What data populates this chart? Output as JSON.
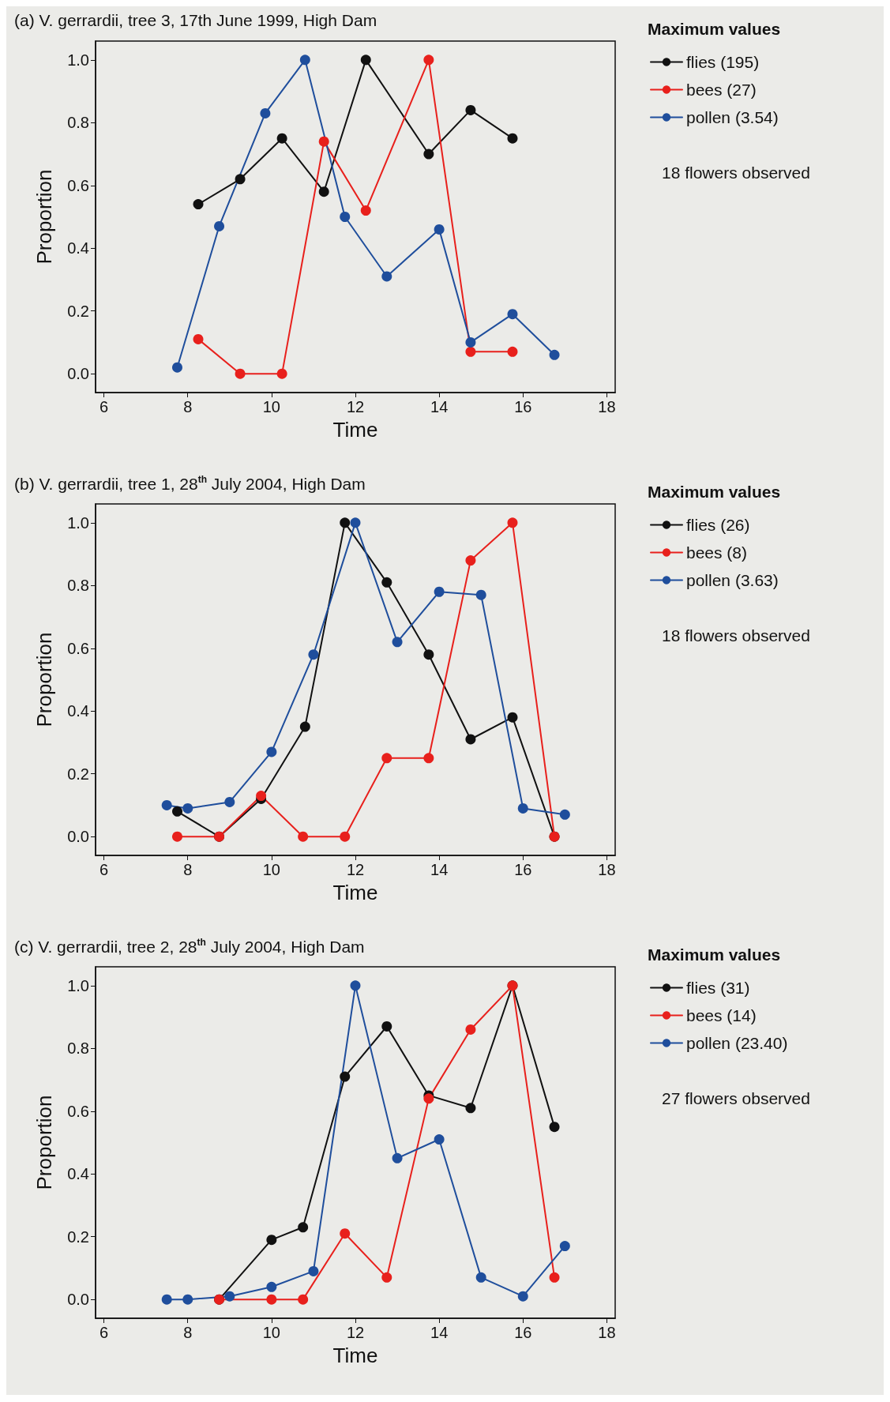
{
  "chart_data": [
    {
      "type": "line",
      "title": "(a) V. gerrardii, tree 3, 17th June 1999, High Dam",
      "xlabel": "Time",
      "ylabel": "Proportion",
      "legend_title": "Maximum values",
      "annotations": [
        "18 flowers observed"
      ],
      "legend": "right",
      "grid": false,
      "marker": "circle",
      "line_style": "solid",
      "xlim": [
        5.8,
        18.2
      ],
      "xticks": [
        6,
        8,
        10,
        12,
        14,
        16,
        18
      ],
      "ylim": [
        -0.06,
        1.06
      ],
      "yticks": [
        {
          "value": 0,
          "label": "0.0"
        },
        {
          "value": 0.2,
          "label": "0.2"
        },
        {
          "value": 0.4,
          "label": "0.4"
        },
        {
          "value": 0.6,
          "label": "0.6"
        },
        {
          "value": 0.8,
          "label": "0.8"
        },
        {
          "value": 1,
          "label": "1.0"
        }
      ],
      "series": [
        {
          "name": "flies (195)",
          "color": "#111111",
          "x": [
            8.25,
            9.25,
            10.25,
            11.25,
            12.25,
            13.75,
            14.75,
            15.75
          ],
          "values": [
            0.54,
            0.62,
            0.75,
            0.58,
            1.0,
            0.7,
            0.84,
            0.75
          ]
        },
        {
          "name": "bees (27)",
          "color": "#e8201c",
          "x": [
            8.25,
            9.25,
            10.25,
            11.25,
            12.25,
            13.75,
            14.75,
            15.75
          ],
          "values": [
            0.11,
            0,
            0,
            0.74,
            0.52,
            1.0,
            0.07,
            0.07
          ]
        },
        {
          "name": "pollen (3.54)",
          "color": "#1f4e9c",
          "x": [
            7.75,
            8.75,
            9.85,
            10.8,
            11.75,
            12.75,
            14,
            14.75,
            15.75,
            16.75
          ],
          "values": [
            0.02,
            0.47,
            0.83,
            1.0,
            0.5,
            0.31,
            0.46,
            0.1,
            0.19,
            0.06
          ]
        }
      ]
    },
    {
      "type": "line",
      "title": "(b) V. gerrardii, tree 1, 28$^{th}$ July 2004, High Dam",
      "xlabel": "Time",
      "ylabel": "Proportion",
      "legend_title": "Maximum values",
      "annotations": [
        "18 flowers observed"
      ],
      "legend": "right",
      "grid": false,
      "marker": "circle",
      "line_style": "solid",
      "xlim": [
        5.8,
        18.2
      ],
      "xticks": [
        6,
        8,
        10,
        12,
        14,
        16,
        18
      ],
      "ylim": [
        -0.06,
        1.06
      ],
      "yticks": [
        {
          "value": 0,
          "label": "0.0"
        },
        {
          "value": 0.2,
          "label": "0.2"
        },
        {
          "value": 0.4,
          "label": "0.4"
        },
        {
          "value": 0.6,
          "label": "0.6"
        },
        {
          "value": 0.8,
          "label": "0.8"
        },
        {
          "value": 1,
          "label": "1.0"
        }
      ],
      "series": [
        {
          "name": "flies (26)",
          "color": "#111111",
          "x": [
            7.75,
            8.75,
            9.75,
            10.8,
            11.75,
            12.75,
            13.75,
            14.75,
            15.75,
            16.75
          ],
          "values": [
            0.08,
            0,
            0.12,
            0.35,
            1.0,
            0.81,
            0.58,
            0.31,
            0.38,
            0
          ]
        },
        {
          "name": "bees (8)",
          "color": "#e8201c",
          "x": [
            7.75,
            8.75,
            9.75,
            10.75,
            11.75,
            12.75,
            13.75,
            14.75,
            15.75,
            16.75
          ],
          "values": [
            0,
            0,
            0.13,
            0,
            0,
            0.25,
            0.25,
            0.88,
            1.0,
            0
          ]
        },
        {
          "name": "pollen (3.63)",
          "color": "#1f4e9c",
          "x": [
            7.5,
            8,
            9,
            10,
            11,
            12,
            13,
            14,
            15,
            16,
            17
          ],
          "values": [
            0.1,
            0.09,
            0.11,
            0.27,
            0.58,
            1.0,
            0.62,
            0.78,
            0.77,
            0.09,
            0.07
          ]
        }
      ]
    },
    {
      "type": "line",
      "title": "(c) V. gerrardii, tree 2, 28$^{th}$ July 2004, High Dam",
      "xlabel": "Time",
      "ylabel": "Proportion",
      "legend_title": "Maximum values",
      "annotations": [
        "27 flowers observed"
      ],
      "legend": "right",
      "grid": false,
      "marker": "circle",
      "line_style": "solid",
      "xlim": [
        5.8,
        18.2
      ],
      "xticks": [
        6,
        8,
        10,
        12,
        14,
        16,
        18
      ],
      "ylim": [
        -0.06,
        1.06
      ],
      "yticks": [
        {
          "value": 0,
          "label": "0.0"
        },
        {
          "value": 0.2,
          "label": "0.2"
        },
        {
          "value": 0.4,
          "label": "0.4"
        },
        {
          "value": 0.6,
          "label": "0.6"
        },
        {
          "value": 0.8,
          "label": "0.8"
        },
        {
          "value": 1,
          "label": "1.0"
        }
      ],
      "series": [
        {
          "name": "flies (31)",
          "color": "#111111",
          "x": [
            8.75,
            10,
            10.75,
            11.75,
            12.75,
            13.75,
            14.75,
            15.75,
            16.75
          ],
          "values": [
            0,
            0.19,
            0.23,
            0.71,
            0.87,
            0.65,
            0.61,
            1.0,
            0.55
          ]
        },
        {
          "name": "bees (14)",
          "color": "#e8201c",
          "x": [
            8.75,
            10,
            10.75,
            11.75,
            12.75,
            13.75,
            14.75,
            15.75,
            16.75
          ],
          "values": [
            0,
            0,
            0,
            0.21,
            0.07,
            0.64,
            0.86,
            1.0,
            0.07
          ]
        },
        {
          "name": "pollen (23.40)",
          "color": "#1f4e9c",
          "x": [
            7.5,
            8,
            9,
            10,
            11,
            12,
            13,
            14,
            15,
            16,
            17
          ],
          "values": [
            0,
            0,
            0.01,
            0.04,
            0.09,
            1.0,
            0.45,
            0.51,
            0.07,
            0.01,
            0.17
          ]
        }
      ]
    }
  ]
}
